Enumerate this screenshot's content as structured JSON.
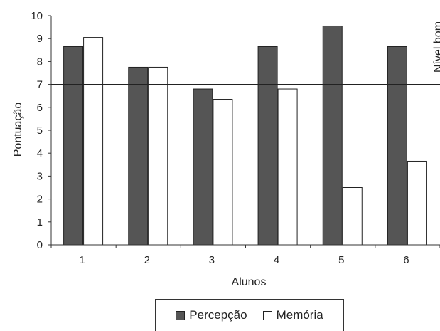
{
  "chart_data": {
    "type": "bar",
    "xlabel": "Alunos",
    "ylabel": "Pontuação",
    "categories": [
      "1",
      "2",
      "3",
      "4",
      "5",
      "6"
    ],
    "ylim": [
      0,
      10
    ],
    "yticks": [
      "0",
      "1",
      "2",
      "3",
      "4",
      "5",
      "6",
      "7",
      "8",
      "9",
      "10"
    ],
    "series": [
      {
        "name": "Percepção",
        "values": [
          8.65,
          7.75,
          6.8,
          8.65,
          9.55,
          8.65
        ],
        "color": "#555555"
      },
      {
        "name": "Memória",
        "values": [
          9.05,
          7.75,
          6.35,
          6.8,
          2.5,
          3.65
        ],
        "color": "#ffffff"
      }
    ],
    "reference_line": {
      "value": 7,
      "label": "Nível bom"
    },
    "grid": false,
    "legend_position": "bottom"
  }
}
